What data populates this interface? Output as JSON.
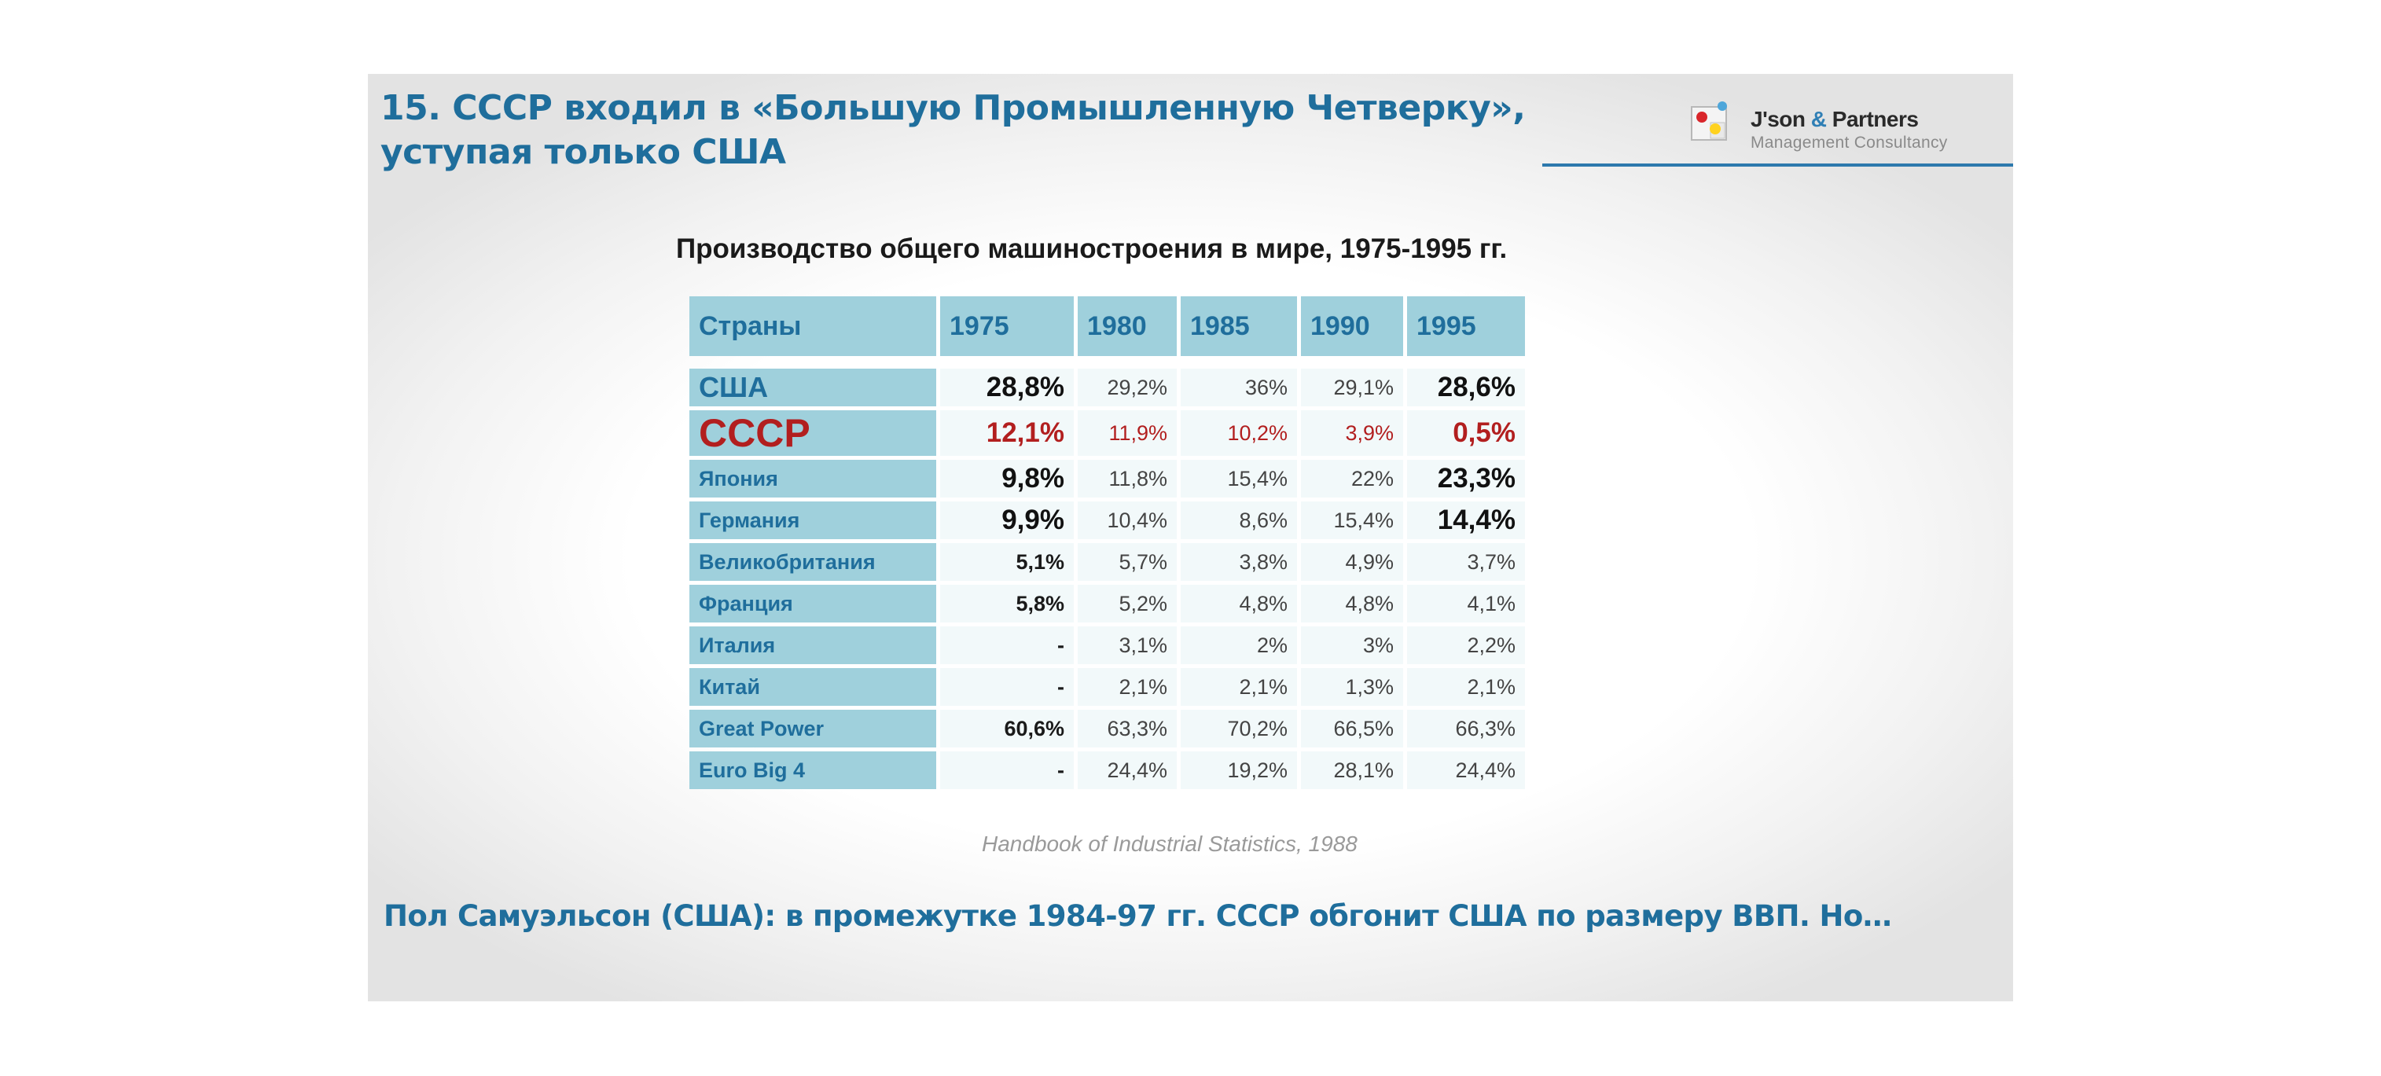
{
  "title": {
    "line1": "15. СССР входил в «Большую Промышленную Четверку»,",
    "line2": "уступая только США"
  },
  "logo": {
    "name_part1": "J'son ",
    "name_amp": "&",
    "name_part2": " Partners",
    "subtitle": "Management Consultancy",
    "icon": "logo-dots-icon"
  },
  "table": {
    "title": "Производство общего машиностроения в мире, 1975-1995 гг.",
    "headers": [
      "Страны",
      "1975",
      "1980",
      "1985",
      "1990",
      "1995"
    ],
    "rows": [
      [
        "США",
        "28,8%",
        "29,2%",
        "36%",
        "29,1%",
        "28,6%"
      ],
      [
        "СССР",
        "12,1%",
        "11,9%",
        "10,2%",
        "3,9%",
        "0,5%"
      ],
      [
        "Япония",
        "9,8%",
        "11,8%",
        "15,4%",
        "22%",
        "23,3%"
      ],
      [
        "Германия",
        "9,9%",
        "10,4%",
        "8,6%",
        "15,4%",
        "14,4%"
      ],
      [
        "Великобритания",
        "5,1%",
        "5,7%",
        "3,8%",
        "4,9%",
        "3,7%"
      ],
      [
        "Франция",
        "5,8%",
        "5,2%",
        "4,8%",
        "4,8%",
        "4,1%"
      ],
      [
        "Италия",
        "-",
        "3,1%",
        "2%",
        "3%",
        "2,2%"
      ],
      [
        "Китай",
        "-",
        "2,1%",
        "2,1%",
        "1,3%",
        "2,1%"
      ],
      [
        "Great Power",
        "60,6%",
        "63,3%",
        "70,2%",
        "66,5%",
        "66,3%"
      ],
      [
        "Euro Big 4",
        "-",
        "24,4%",
        "19,2%",
        "28,1%",
        "24,4%"
      ]
    ]
  },
  "source": "Handbook of Industrial Statistics, 1988",
  "footer": "Пол Самуэльсон (США): в промежутке 1984-97 гг. СССР обгонит США по размеру ВВП. Но…",
  "colors": {
    "accent": "#1f6e9c",
    "header_fill": "#9fd0dc",
    "highlight_red": "#b21f1f",
    "rule": "#2d79ad"
  }
}
